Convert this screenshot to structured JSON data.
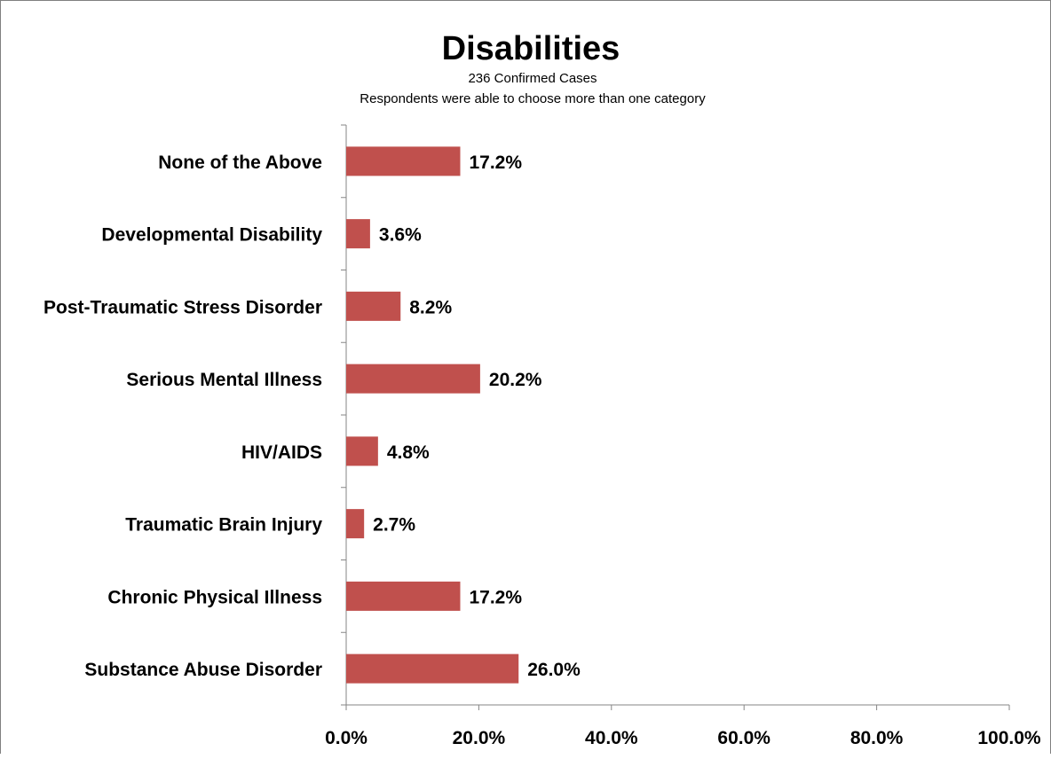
{
  "chart_data": {
    "type": "bar",
    "orientation": "horizontal",
    "title": "Disabilities",
    "subtitle_lines": [
      "236 Confirmed Cases",
      "Respondents were able to choose more than one category"
    ],
    "categories": [
      "None of the Above",
      "Developmental Disability",
      "Post-Traumatic Stress Disorder",
      "Serious Mental Illness",
      "HIV/AIDS",
      "Traumatic Brain Injury",
      "Chronic Physical Illness",
      "Substance Abuse Disorder"
    ],
    "values": [
      17.2,
      3.6,
      8.2,
      20.2,
      4.8,
      2.7,
      17.2,
      26.0
    ],
    "data_labels": [
      "17.2%",
      "3.6%",
      "8.2%",
      "20.2%",
      "4.8%",
      "2.7%",
      "17.2%",
      "26.0%"
    ],
    "xlim": [
      0,
      100
    ],
    "x_ticks": [
      0,
      20,
      40,
      60,
      80,
      100
    ],
    "x_tick_labels": [
      "0.0%",
      "20.0%",
      "40.0%",
      "60.0%",
      "80.0%",
      "100.0%"
    ],
    "grid": false,
    "legend": "none",
    "colors": {
      "bar": "#c0504d",
      "axis": "#868686",
      "text": "#000000"
    }
  }
}
